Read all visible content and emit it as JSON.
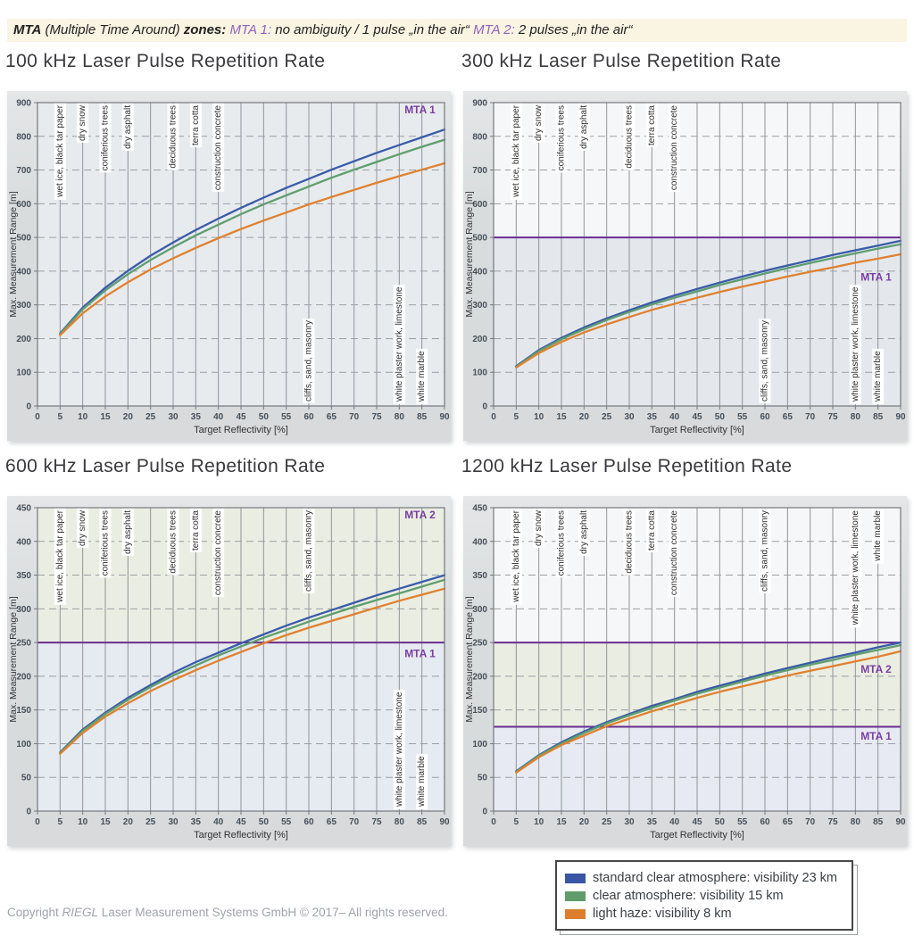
{
  "header": {
    "mta_bold": "MTA",
    "mta_paren": " (Multiple Time Around) ",
    "zones_bold": "zones:",
    "mta1_label": " MTA 1:",
    "mta1_text": " no ambiguity / 1 pulse „in the air“ ",
    "mta2_label": " MTA 2:",
    "mta2_text": " 2 pulses „in the air“"
  },
  "colors": {
    "header_purple": "#8f63bd",
    "mta_line_purple": "#6a2d91",
    "mta_label_purple": "#7a3fa2",
    "grid_vertical": "#8f959a",
    "grid_horizontal": "#9aa0a4",
    "plot_border": "#75797d",
    "tick_label": "#454f59",
    "axis_title": "#333333",
    "material_label": "#2f2f2f",
    "series_blue": "#3a5ba9",
    "series_green": "#5f9e6e",
    "series_orange": "#e0812f"
  },
  "legend": {
    "items": [
      {
        "label": "standard clear atmosphere: visibility 23 km",
        "color": "#3a55a4"
      },
      {
        "label": "clear atmosphere: visibility 15 km",
        "color": "#5f9c6a"
      },
      {
        "label": "light haze: visibility 8 km",
        "color": "#dd7e2c"
      }
    ]
  },
  "footer": {
    "pre": "Copyright ",
    "riegl": "RIEGL",
    "post": " Laser Measurement Systems GmbH © 2017– All rights reserved."
  },
  "chart_data": [
    {
      "type": "line",
      "title": "100 kHz Laser Pulse Repetition Rate",
      "xlabel": "Target Reflectivity [%]",
      "ylabel": "Max. Measurement Range [m]",
      "xlim": [
        0,
        90
      ],
      "ylim": [
        0,
        900
      ],
      "xtick_step": 5,
      "ytick_step": 100,
      "grid": true,
      "x": [
        5,
        10,
        15,
        20,
        25,
        30,
        35,
        40,
        45,
        50,
        55,
        60,
        65,
        70,
        75,
        80,
        85,
        90
      ],
      "series": [
        {
          "name": "standard clear atmosphere: visibility 23 km",
          "color": "#3a5ba9",
          "values": [
            215,
            292,
            351,
            401,
            446,
            485,
            522,
            556,
            588,
            618,
            647,
            674,
            701,
            726,
            751,
            774,
            797,
            820
          ]
        },
        {
          "name": "clear atmosphere: visibility 15 km",
          "color": "#5f9e6e",
          "values": [
            213,
            287,
            343,
            391,
            433,
            471,
            506,
            538,
            569,
            598,
            625,
            651,
            677,
            701,
            724,
            747,
            769,
            790
          ]
        },
        {
          "name": "light haze: visibility 8 km",
          "color": "#e0812f",
          "values": [
            210,
            275,
            325,
            367,
            405,
            438,
            469,
            498,
            525,
            550,
            574,
            598,
            620,
            641,
            662,
            682,
            701,
            720
          ]
        }
      ],
      "mta_boundaries": [],
      "zones": [
        {
          "label": "MTA 1",
          "from": 0,
          "to": 900,
          "fill": "#e7ebee",
          "label_y": 868
        }
      ],
      "material_labels": [
        {
          "text": "wet ice, black tar paper",
          "x": 5,
          "anchor": "top"
        },
        {
          "text": "dry snow",
          "x": 10,
          "anchor": "top"
        },
        {
          "text": "coniferious trees",
          "x": 15,
          "anchor": "top"
        },
        {
          "text": "dry asphalt",
          "x": 20,
          "anchor": "top"
        },
        {
          "text": "deciduous trees",
          "x": 30,
          "anchor": "top"
        },
        {
          "text": "terra cotta",
          "x": 35,
          "anchor": "top"
        },
        {
          "text": "construction concrete",
          "x": 40,
          "anchor": "top"
        },
        {
          "text": "cliffs, sand, masonry",
          "x": 60,
          "anchor": "bottom"
        },
        {
          "text": "white plaster work, limestone",
          "x": 80,
          "anchor": "bottom"
        },
        {
          "text": "white marble",
          "x": 85,
          "anchor": "bottom"
        }
      ]
    },
    {
      "type": "line",
      "title": "300 kHz Laser Pulse Repetition Rate",
      "xlabel": "Target Reflectivity [%]",
      "ylabel": "Max. Measurement Range [m]",
      "xlim": [
        0,
        90
      ],
      "ylim": [
        0,
        900
      ],
      "xtick_step": 5,
      "ytick_step": 100,
      "grid": true,
      "x": [
        5,
        10,
        15,
        20,
        25,
        30,
        35,
        40,
        45,
        50,
        55,
        60,
        65,
        70,
        75,
        80,
        85,
        90
      ],
      "series": [
        {
          "name": "standard clear atmosphere: visibility 23 km",
          "color": "#3a5ba9",
          "values": [
            118,
            166,
            202,
            233,
            260,
            284,
            307,
            328,
            347,
            366,
            384,
            401,
            417,
            432,
            448,
            462,
            476,
            490
          ]
        },
        {
          "name": "clear atmosphere: visibility 15 km",
          "color": "#5f9e6e",
          "values": [
            116,
            163,
            198,
            228,
            255,
            279,
            301,
            321,
            340,
            359,
            376,
            393,
            409,
            424,
            439,
            453,
            467,
            480
          ]
        },
        {
          "name": "light haze: visibility 8 km",
          "color": "#e0812f",
          "values": [
            114,
            157,
            190,
            218,
            242,
            264,
            285,
            303,
            321,
            338,
            354,
            369,
            384,
            398,
            411,
            425,
            437,
            450
          ]
        }
      ],
      "mta_boundaries": [
        500
      ],
      "zones": [
        {
          "label": null,
          "from": 500,
          "to": 900,
          "fill": "#f6f7f8",
          "label_y": null
        },
        {
          "label": "MTA 1",
          "from": 0,
          "to": 500,
          "fill": "#e4e8ed",
          "label_y": 372
        }
      ],
      "material_labels": [
        {
          "text": "wet ice, black tar paper",
          "x": 5,
          "anchor": "top"
        },
        {
          "text": "dry snow",
          "x": 10,
          "anchor": "top"
        },
        {
          "text": "coniferious trees",
          "x": 15,
          "anchor": "top"
        },
        {
          "text": "dry asphalt",
          "x": 20,
          "anchor": "top"
        },
        {
          "text": "deciduous trees",
          "x": 30,
          "anchor": "top"
        },
        {
          "text": "terra cotta",
          "x": 35,
          "anchor": "top"
        },
        {
          "text": "construction concrete",
          "x": 40,
          "anchor": "top"
        },
        {
          "text": "cliffs, sand, masonry",
          "x": 60,
          "anchor": "bottom"
        },
        {
          "text": "white plaster work, limestone",
          "x": 80,
          "anchor": "bottom"
        },
        {
          "text": "white marble",
          "x": 85,
          "anchor": "bottom"
        }
      ]
    },
    {
      "type": "line",
      "title": "600 kHz Laser Pulse Repetition Rate",
      "xlabel": "Target Reflectivity [%]",
      "ylabel": "Max. Measurement Range [m]",
      "xlim": [
        0,
        90
      ],
      "ylim": [
        0,
        450
      ],
      "xtick_step": 5,
      "ytick_step": 50,
      "grid": true,
      "x": [
        5,
        10,
        15,
        20,
        25,
        30,
        35,
        40,
        45,
        50,
        55,
        60,
        65,
        70,
        75,
        80,
        85,
        90
      ],
      "series": [
        {
          "name": "standard clear atmosphere: visibility 23 km",
          "color": "#3a5ba9",
          "values": [
            87,
            121,
            146,
            168,
            187,
            205,
            221,
            235,
            249,
            262,
            275,
            287,
            298,
            309,
            320,
            330,
            340,
            350
          ]
        },
        {
          "name": "clear atmosphere: visibility 15 km",
          "color": "#5f9e6e",
          "values": [
            86,
            119,
            144,
            165,
            184,
            201,
            216,
            231,
            244,
            257,
            269,
            281,
            292,
            303,
            313,
            323,
            333,
            343
          ]
        },
        {
          "name": "light haze: visibility 8 km",
          "color": "#e0812f",
          "values": [
            85,
            116,
            140,
            160,
            178,
            194,
            209,
            223,
            236,
            249,
            261,
            272,
            282,
            292,
            302,
            312,
            321,
            330
          ]
        }
      ],
      "mta_boundaries": [
        250
      ],
      "zones": [
        {
          "label": "MTA 2",
          "from": 250,
          "to": 450,
          "fill": "#eaede1",
          "label_y": 434
        },
        {
          "label": "MTA 1",
          "from": 0,
          "to": 250,
          "fill": "#e6eaf1",
          "label_y": 228
        }
      ],
      "material_labels": [
        {
          "text": "wet ice, black tar paper",
          "x": 5,
          "anchor": "top"
        },
        {
          "text": "dry snow",
          "x": 10,
          "anchor": "top"
        },
        {
          "text": "coniferious trees",
          "x": 15,
          "anchor": "top"
        },
        {
          "text": "dry asphalt",
          "x": 20,
          "anchor": "top"
        },
        {
          "text": "deciduous trees",
          "x": 30,
          "anchor": "top"
        },
        {
          "text": "terra cotta",
          "x": 35,
          "anchor": "top"
        },
        {
          "text": "construction concrete",
          "x": 40,
          "anchor": "top"
        },
        {
          "text": "cliffs, sand, masonry",
          "x": 60,
          "anchor": "top"
        },
        {
          "text": "white plaster work, limestone",
          "x": 80,
          "anchor": "bottom"
        },
        {
          "text": "white marble",
          "x": 85,
          "anchor": "bottom"
        }
      ]
    },
    {
      "type": "line",
      "title": "1200 kHz Laser Pulse Repetition Rate",
      "xlabel": "Target Reflectivity [%]",
      "ylabel": "Max. Measurement Range [m]",
      "xlim": [
        0,
        90
      ],
      "ylim": [
        0,
        450
      ],
      "xtick_step": 5,
      "ytick_step": 50,
      "grid": true,
      "x": [
        5,
        10,
        15,
        20,
        25,
        30,
        35,
        40,
        45,
        50,
        55,
        60,
        65,
        70,
        75,
        80,
        85,
        90
      ],
      "series": [
        {
          "name": "standard clear atmosphere: visibility 23 km",
          "color": "#3a5ba9",
          "values": [
            59,
            83,
            102,
            118,
            132,
            144,
            156,
            166,
            177,
            186,
            195,
            204,
            212,
            220,
            228,
            235,
            243,
            250
          ]
        },
        {
          "name": "clear atmosphere: visibility 15 km",
          "color": "#5f9e6e",
          "values": [
            58,
            82,
            100,
            116,
            130,
            142,
            153,
            164,
            174,
            183,
            192,
            201,
            209,
            217,
            224,
            232,
            239,
            246
          ]
        },
        {
          "name": "light haze: visibility 8 km",
          "color": "#e0812f",
          "values": [
            57,
            80,
            98,
            112,
            126,
            137,
            148,
            158,
            168,
            177,
            185,
            193,
            201,
            208,
            215,
            222,
            229,
            237
          ]
        }
      ],
      "mta_boundaries": [
        250,
        125
      ],
      "zones": [
        {
          "label": null,
          "from": 250,
          "to": 450,
          "fill": "#f6f7f8",
          "label_y": null
        },
        {
          "label": "MTA 2",
          "from": 125,
          "to": 250,
          "fill": "#eaede1",
          "label_y": 205
        },
        {
          "label": "MTA 1",
          "from": 0,
          "to": 125,
          "fill": "#e7eaf2",
          "label_y": 106
        }
      ],
      "material_labels": [
        {
          "text": "wet ice, black tar paper",
          "x": 5,
          "anchor": "top"
        },
        {
          "text": "dry snow",
          "x": 10,
          "anchor": "top"
        },
        {
          "text": "coniferious trees",
          "x": 15,
          "anchor": "top"
        },
        {
          "text": "dry asphalt",
          "x": 20,
          "anchor": "top"
        },
        {
          "text": "deciduous trees",
          "x": 30,
          "anchor": "top"
        },
        {
          "text": "terra cotta",
          "x": 35,
          "anchor": "top"
        },
        {
          "text": "construction concrete",
          "x": 40,
          "anchor": "top"
        },
        {
          "text": "cliffs, sand, masonry",
          "x": 60,
          "anchor": "top"
        },
        {
          "text": "white plaster work, limestone",
          "x": 80,
          "anchor": "top"
        },
        {
          "text": "white marble",
          "x": 85,
          "anchor": "top"
        }
      ]
    }
  ]
}
